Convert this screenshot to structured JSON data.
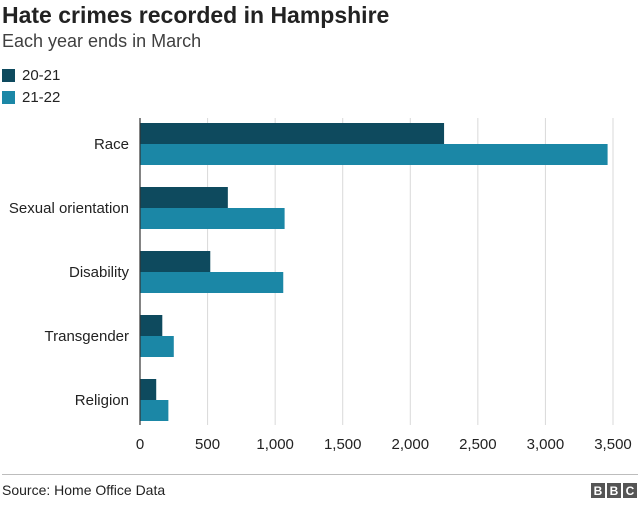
{
  "header": {
    "title": "Hate crimes recorded in Hampshire",
    "subtitle": "Each year ends in March"
  },
  "footer": {
    "source": "Source: Home Office Data",
    "logo_letters": [
      "B",
      "B",
      "C"
    ]
  },
  "colors": {
    "series_1": "#0e4a5e",
    "series_2": "#1b87a6",
    "grid": "#d9d9d9",
    "axis": "#333333"
  },
  "chart_data": {
    "type": "bar",
    "orientation": "horizontal",
    "categories": [
      "Race",
      "Sexual orientation",
      "Disability",
      "Transgender",
      "Religion"
    ],
    "series": [
      {
        "name": "20-21",
        "values": [
          2250,
          650,
          520,
          165,
          120
        ]
      },
      {
        "name": "21-22",
        "values": [
          3460,
          1070,
          1060,
          250,
          210
        ]
      }
    ],
    "xlim": [
      0,
      3500
    ],
    "xticks": [
      0,
      500,
      1000,
      1500,
      2000,
      2500,
      3000,
      3500
    ],
    "xtick_labels": [
      "0",
      "500",
      "1,000",
      "1,500",
      "2,000",
      "2,500",
      "3,000",
      "3,500"
    ],
    "grid": true,
    "legend_position": "top-left"
  }
}
